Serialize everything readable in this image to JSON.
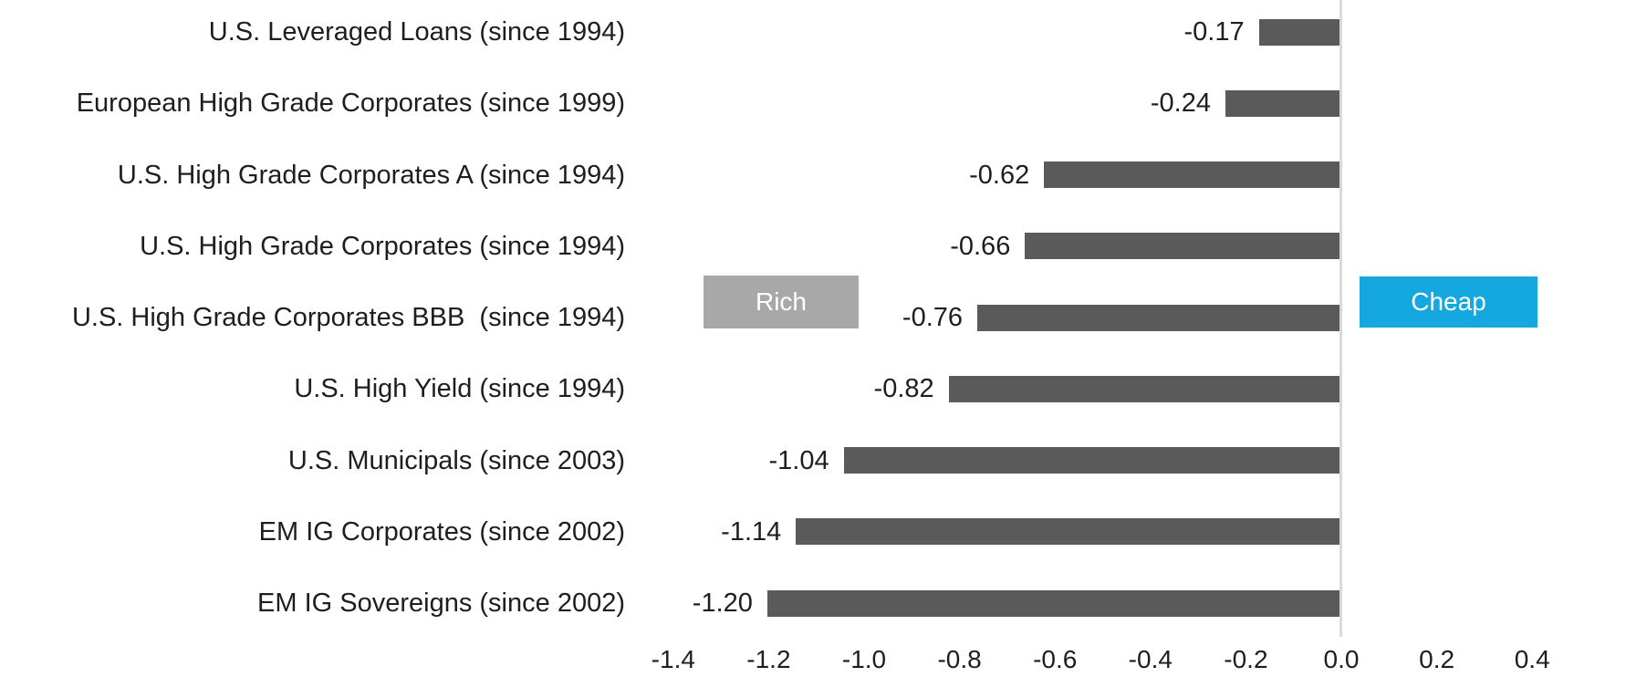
{
  "chart_data": {
    "type": "bar",
    "orientation": "horizontal",
    "title": "",
    "xlabel": "",
    "ylabel": "",
    "categories": [
      "U.S. Leveraged Loans (since 1994)",
      "European High Grade Corporates (since 1999)",
      "U.S. High Grade Corporates A (since 1994)",
      "U.S. High Grade Corporates (since 1994)",
      "U.S. High Grade Corporates BBB  (since 1994)",
      "U.S. High Yield (since 1994)",
      "U.S. Municipals (since 2003)",
      "EM IG Corporates (since 2002)",
      "EM IG Sovereigns (since 2002)"
    ],
    "values": [
      -0.17,
      -0.24,
      -0.62,
      -0.66,
      -0.76,
      -0.82,
      -1.04,
      -1.14,
      -1.2
    ],
    "value_labels": [
      "-0.17",
      "-0.24",
      "-0.62",
      "-0.66",
      "-0.76",
      "-0.82",
      "-1.04",
      "-1.14",
      "-1.20"
    ],
    "x_ticks": [
      -1.4,
      -1.2,
      -1.0,
      -0.8,
      -0.6,
      -0.4,
      -0.2,
      0.0,
      0.2,
      0.4
    ],
    "x_tick_labels": [
      "-1.4",
      "-1.2",
      "-1.0",
      "-0.8",
      "-0.6",
      "-0.4",
      "-0.2",
      "0.0",
      "0.2",
      "0.4"
    ],
    "xlim": [
      -1.5,
      0.45
    ],
    "grid": "zero-axis-line-only",
    "legend": "none",
    "colors": {
      "bar": "#5a5a5a",
      "rich_box": "#a8a8a8",
      "cheap_box": "#14a7e0",
      "axis_line": "#d9d9d9",
      "text": "#1e1e1e",
      "background": "#ffffff"
    },
    "annotations": [
      {
        "label": "Rich",
        "side": "left"
      },
      {
        "label": "Cheap",
        "side": "right"
      }
    ]
  }
}
